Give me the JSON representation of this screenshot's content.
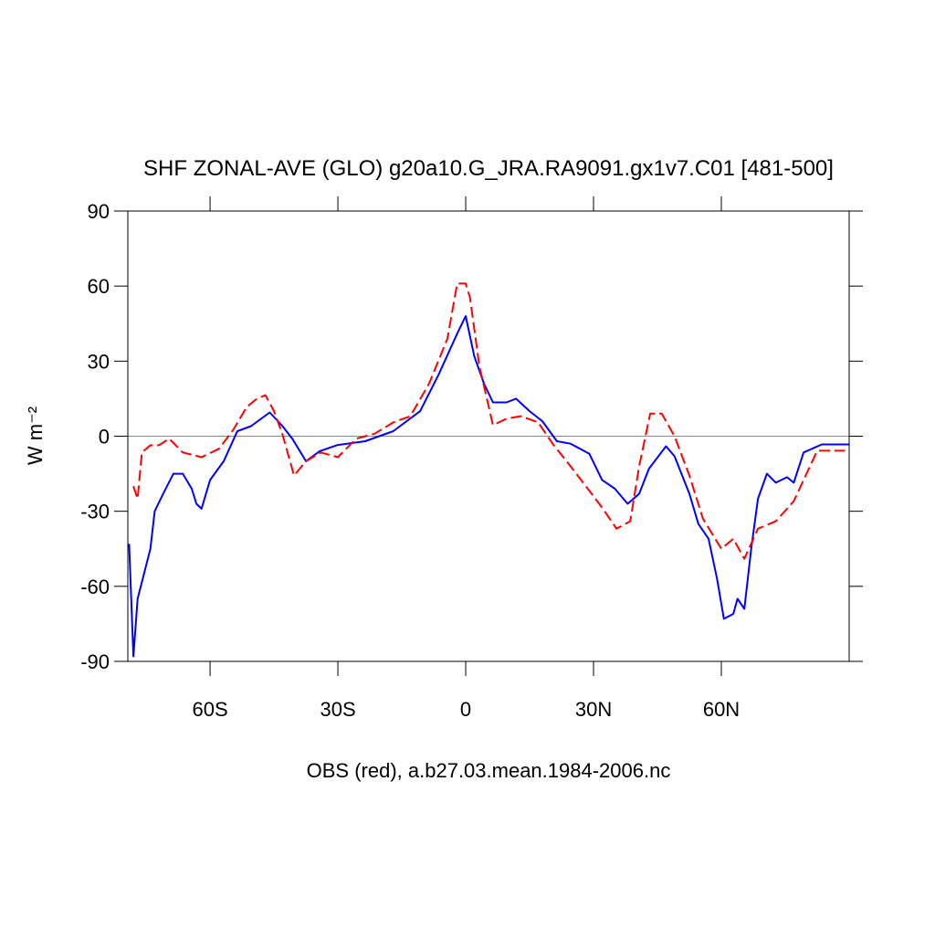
{
  "chart_data": {
    "type": "line",
    "title": "SHF ZONAL-AVE (GLO) g20a10.G_JRA.RA9091.gx1v7.C01 [481-500]",
    "xlabel": "OBS (red), a.b27.03.mean.1984-2006.nc",
    "ylabel": "W m⁻²",
    "xlim": [
      -79.3,
      90
    ],
    "ylim": [
      -90,
      90
    ],
    "xticks": [
      {
        "value": -60,
        "label": "60S"
      },
      {
        "value": -30,
        "label": "30S"
      },
      0,
      {
        "value": 30,
        "label": "30N"
      },
      {
        "value": 60,
        "label": "60N"
      }
    ],
    "yticks": [
      -90,
      -60,
      -30,
      0,
      30,
      60,
      90
    ],
    "zero_line": true,
    "series": [
      {
        "color": "#0000ff",
        "dash": false,
        "x": [
          -79,
          -78,
          -77,
          -74,
          -73,
          -71,
          -68.6,
          -66.4,
          -64.3,
          -63.2,
          -62,
          -60,
          -56.8,
          -53.6,
          -50.4,
          -46,
          -43,
          -40.7,
          -37.5,
          -34.3,
          -30,
          -23.6,
          -17,
          -10.7,
          -6.4,
          -2,
          0,
          2,
          4.3,
          6.4,
          9.6,
          11.8,
          15,
          18,
          21.4,
          24.6,
          29,
          32,
          35,
          38,
          40.7,
          43,
          47,
          49,
          52.5,
          54.6,
          57,
          59,
          60.6,
          62.8,
          63.8,
          65.4,
          67,
          68.6,
          70.7,
          72.8,
          75.4,
          77,
          79.3,
          83.6,
          90
        ],
        "values": [
          -43,
          -88,
          -65,
          -45,
          -30,
          -23,
          -15,
          -15,
          -21,
          -27,
          -29,
          -17.5,
          -10,
          2,
          4,
          9.5,
          4,
          -1,
          -10,
          -6,
          -3.5,
          -2,
          2,
          10,
          24.5,
          41,
          48,
          32,
          21,
          13.5,
          13.5,
          15,
          10,
          6,
          -2,
          -3,
          -7,
          -17.5,
          -21,
          -27,
          -23,
          -13,
          -4,
          -8,
          -23,
          -35,
          -41,
          -57,
          -73,
          -71,
          -65,
          -69,
          -45,
          -25,
          -15,
          -18.6,
          -16.4,
          -18.6,
          -6.5,
          -3.3,
          -3.3
        ]
      },
      {
        "color": "#ff0000",
        "dash": true,
        "x": [
          -78,
          -77,
          -76,
          -74,
          -72,
          -69.6,
          -66.4,
          -62,
          -57.9,
          -54.6,
          -51.4,
          -49,
          -47,
          -45,
          -43,
          -40.3,
          -37.5,
          -34,
          -30,
          -25.7,
          -21.4,
          -17,
          -13,
          -8.6,
          -4.3,
          -2,
          0,
          1,
          3.2,
          6.4,
          9.6,
          12.9,
          17,
          20.4,
          24.6,
          27.9,
          32,
          35.4,
          38.6,
          40.7,
          43.3,
          46,
          49,
          52.5,
          55.7,
          60,
          62.8,
          65.4,
          68.6,
          72.8,
          77,
          82.5,
          89
        ],
        "values": [
          -20,
          -25,
          -6.5,
          -3.6,
          -3.6,
          -1,
          -6.5,
          -8.4,
          -5,
          2.5,
          11.7,
          15,
          16.4,
          10,
          0.7,
          -15.7,
          -10,
          -6.5,
          -8.4,
          -1,
          1,
          5.5,
          8,
          21,
          39,
          61,
          61,
          55.5,
          28,
          4.4,
          7,
          8,
          5.5,
          -3,
          -12,
          -19.3,
          -28.5,
          -37,
          -34,
          -12,
          9,
          9,
          0,
          -15.7,
          -33,
          -45,
          -41,
          -49,
          -37,
          -34,
          -26,
          -5.8,
          -5.8
        ]
      }
    ]
  }
}
